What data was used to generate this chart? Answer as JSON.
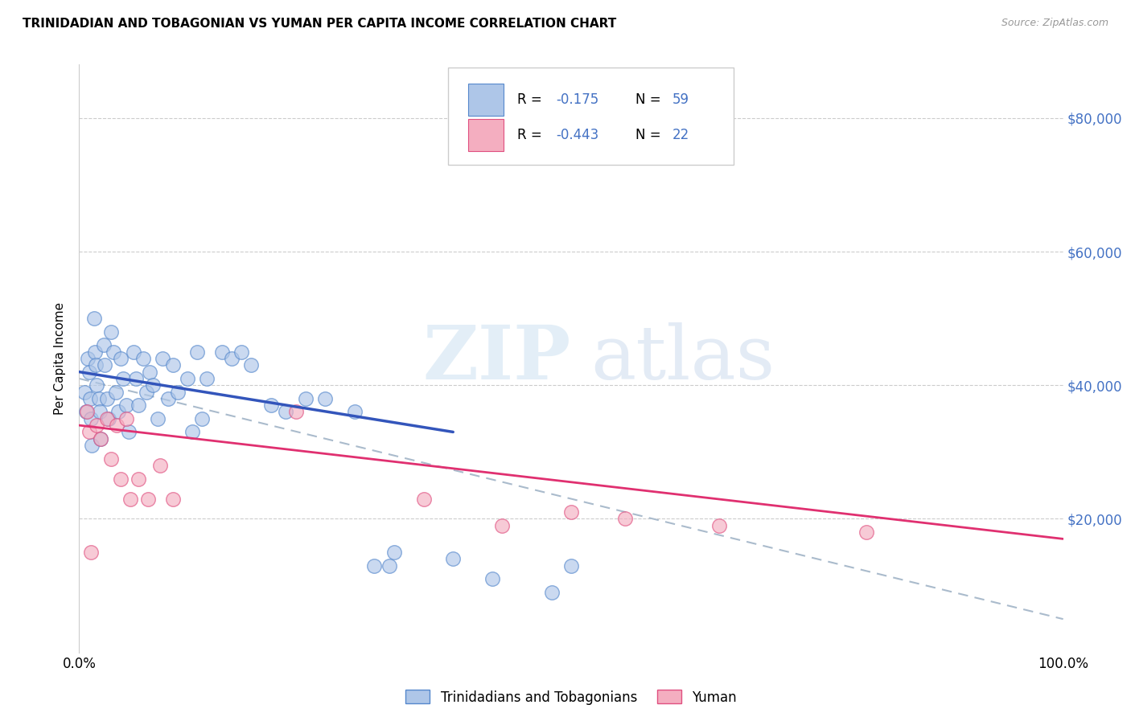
{
  "title": "TRINIDADIAN AND TOBAGONIAN VS YUMAN PER CAPITA INCOME CORRELATION CHART",
  "source": "Source: ZipAtlas.com",
  "ylabel": "Per Capita Income",
  "xmin": 0.0,
  "xmax": 1.0,
  "ymin": 0,
  "ymax": 88000,
  "blue_color": "#aec6e8",
  "blue_edge": "#5588cc",
  "pink_color": "#f4aec0",
  "pink_edge": "#e05080",
  "trend_blue": "#3355bb",
  "trend_pink": "#e03070",
  "trend_dashed_color": "#aabbcc",
  "ytick_vals": [
    20000,
    40000,
    60000,
    80000
  ],
  "ytick_labels": [
    "$20,000",
    "$40,000",
    "$60,000",
    "$80,000"
  ],
  "blue_scatter_x": [
    0.005,
    0.007,
    0.009,
    0.01,
    0.011,
    0.012,
    0.013,
    0.015,
    0.016,
    0.017,
    0.018,
    0.02,
    0.021,
    0.022,
    0.025,
    0.026,
    0.028,
    0.03,
    0.032,
    0.035,
    0.037,
    0.04,
    0.042,
    0.045,
    0.048,
    0.05,
    0.055,
    0.058,
    0.06,
    0.065,
    0.068,
    0.072,
    0.075,
    0.08,
    0.085,
    0.09,
    0.095,
    0.1,
    0.11,
    0.115,
    0.12,
    0.125,
    0.13,
    0.145,
    0.155,
    0.165,
    0.175,
    0.195,
    0.21,
    0.23,
    0.25,
    0.28,
    0.3,
    0.315,
    0.32,
    0.38,
    0.42,
    0.48,
    0.5
  ],
  "blue_scatter_y": [
    39000,
    36000,
    44000,
    42000,
    38000,
    35000,
    31000,
    50000,
    45000,
    43000,
    40000,
    38000,
    36000,
    32000,
    46000,
    43000,
    38000,
    35000,
    48000,
    45000,
    39000,
    36000,
    44000,
    41000,
    37000,
    33000,
    45000,
    41000,
    37000,
    44000,
    39000,
    42000,
    40000,
    35000,
    44000,
    38000,
    43000,
    39000,
    41000,
    33000,
    45000,
    35000,
    41000,
    45000,
    44000,
    45000,
    43000,
    37000,
    36000,
    38000,
    38000,
    36000,
    13000,
    13000,
    15000,
    14000,
    11000,
    9000,
    13000
  ],
  "pink_scatter_x": [
    0.008,
    0.01,
    0.012,
    0.018,
    0.022,
    0.028,
    0.032,
    0.038,
    0.042,
    0.048,
    0.052,
    0.06,
    0.07,
    0.082,
    0.095,
    0.22,
    0.35,
    0.43,
    0.5,
    0.555,
    0.65,
    0.8
  ],
  "pink_scatter_y": [
    36000,
    33000,
    15000,
    34000,
    32000,
    35000,
    29000,
    34000,
    26000,
    35000,
    23000,
    26000,
    23000,
    28000,
    23000,
    36000,
    23000,
    19000,
    21000,
    20000,
    19000,
    18000
  ],
  "blue_trend_x": [
    0.0,
    0.38
  ],
  "blue_trend_y": [
    42000,
    33000
  ],
  "pink_trend_x": [
    0.0,
    1.0
  ],
  "pink_trend_y": [
    34000,
    17000
  ],
  "dashed_trend_x": [
    0.0,
    1.0
  ],
  "dashed_trend_y": [
    41000,
    5000
  ],
  "legend_r1_label": "R =  -0.175   N = 59",
  "legend_r2_label": "R =  -0.443   N = 22",
  "bottom_legend1": "Trinidadians and Tobagonians",
  "bottom_legend2": "Yuman"
}
